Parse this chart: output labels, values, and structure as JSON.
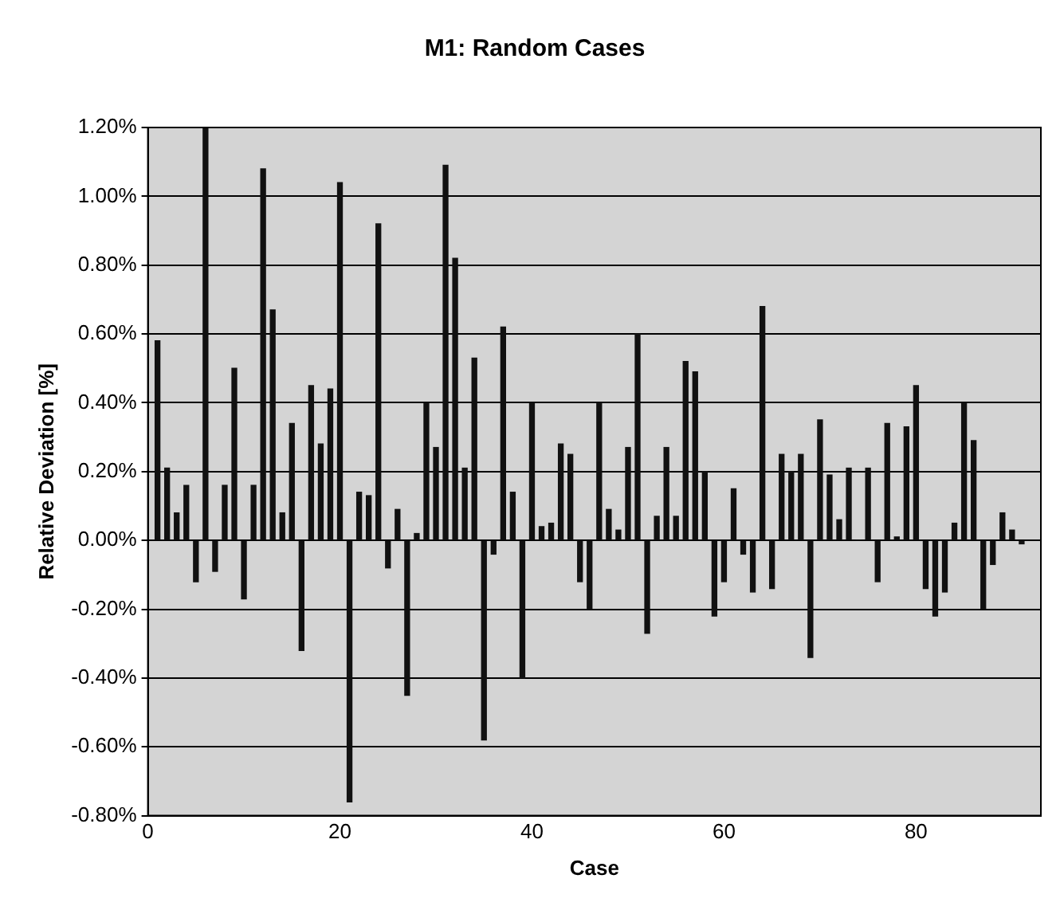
{
  "chart_data": {
    "type": "bar",
    "title": "M1: Random Cases",
    "xlabel": "Case",
    "ylabel": "Relative Deviation [%]",
    "x": [
      1,
      2,
      3,
      4,
      5,
      6,
      7,
      8,
      9,
      10,
      11,
      12,
      13,
      14,
      15,
      16,
      17,
      18,
      19,
      20,
      21,
      22,
      23,
      24,
      25,
      26,
      27,
      28,
      29,
      30,
      31,
      32,
      33,
      34,
      35,
      36,
      37,
      38,
      39,
      40,
      41,
      42,
      43,
      44,
      45,
      46,
      47,
      48,
      49,
      50,
      51,
      52,
      53,
      54,
      55,
      56,
      57,
      58,
      59,
      60,
      61,
      62,
      63,
      64,
      65,
      66,
      67,
      68,
      69,
      70,
      71,
      72,
      73,
      74,
      75,
      76,
      77,
      78,
      79,
      80,
      81,
      82,
      83,
      84,
      85,
      86,
      87,
      88,
      89,
      90,
      91
    ],
    "values": [
      0.58,
      0.21,
      0.08,
      0.16,
      -0.12,
      1.2,
      -0.09,
      0.16,
      0.5,
      -0.17,
      0.16,
      1.08,
      0.67,
      0.08,
      0.34,
      -0.32,
      0.45,
      0.28,
      0.44,
      1.04,
      -0.76,
      0.14,
      0.13,
      0.92,
      -0.08,
      0.09,
      -0.45,
      0.02,
      0.4,
      0.27,
      1.09,
      0.82,
      0.21,
      0.53,
      -0.58,
      -0.04,
      0.62,
      0.14,
      -0.4,
      0.4,
      0.04,
      0.05,
      0.28,
      0.25,
      -0.12,
      -0.2,
      0.4,
      0.09,
      0.03,
      0.27,
      0.6,
      -0.27,
      0.07,
      0.27,
      0.07,
      0.52,
      0.49,
      0.2,
      -0.22,
      -0.12,
      0.15,
      -0.04,
      -0.15,
      0.68,
      -0.14,
      0.25,
      0.2,
      0.25,
      -0.34,
      0.35,
      0.19,
      0.06,
      0.21,
      0.0,
      0.21,
      -0.12,
      0.34,
      0.01,
      0.33,
      0.45,
      -0.14,
      -0.22,
      -0.15,
      0.05,
      0.4,
      0.29,
      -0.2,
      -0.07,
      0.08,
      0.03,
      -0.01
    ],
    "color": "#111111",
    "xlim": [
      0,
      93
    ],
    "xticks": [
      0,
      20,
      40,
      60,
      80
    ],
    "ylim": [
      -0.8,
      1.2
    ],
    "yticks": [
      {
        "value": -0.8,
        "label": "-0.80%"
      },
      {
        "value": -0.6,
        "label": "-0.60%"
      },
      {
        "value": -0.4,
        "label": "-0.40%"
      },
      {
        "value": -0.2,
        "label": "-0.20%"
      },
      {
        "value": 0,
        "label": "0.00%"
      },
      {
        "value": 0.2,
        "label": "0.20%"
      },
      {
        "value": 0.4,
        "label": "0.40%"
      },
      {
        "value": 0.6,
        "label": "0.60%"
      },
      {
        "value": 0.8,
        "label": "0.80%"
      },
      {
        "value": 1.0,
        "label": "1.00%"
      },
      {
        "value": 1.2,
        "label": "1.20%"
      }
    ],
    "grid": "y",
    "legend": false
  }
}
